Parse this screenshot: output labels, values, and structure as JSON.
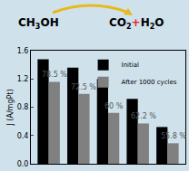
{
  "reaction": {
    "reactant": "CH3OH",
    "product_1": "CO2",
    "plus": "+",
    "product_2": "H2O"
  },
  "chart_data": {
    "type": "bar",
    "y_label": "J (A/mgPt)",
    "categories": [
      null,
      null,
      null,
      null,
      null
    ],
    "series": [
      {
        "name": "Initial",
        "color": "#000000",
        "values": [
          1.48,
          1.36,
          1.2,
          0.92,
          0.52
        ]
      },
      {
        "name": "After 1000 cycles",
        "color": "#808080",
        "values": [
          1.16,
          0.99,
          0.72,
          0.57,
          0.29
        ]
      }
    ],
    "annotations": [
      "78.5 %",
      "72.5 %",
      "60 %",
      "62.2 %",
      "55.8 %"
    ],
    "ylim": [
      0,
      1.6
    ],
    "yticks": [
      {
        "value": 0,
        "label": "0.0"
      },
      0.4,
      0.8,
      1.2,
      1.6
    ],
    "legend": "upper right",
    "tick_labels": "y",
    "grid": false
  }
}
